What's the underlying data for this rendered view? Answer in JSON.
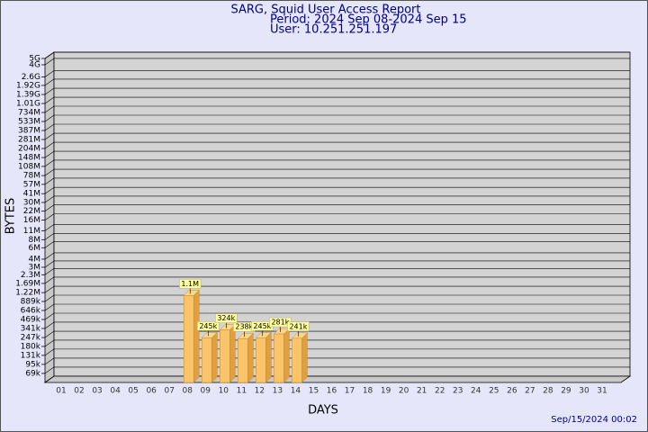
{
  "chart_data": {
    "type": "bar",
    "title": "SARG, Squid User Access Report",
    "subtitle": "Period: 2024 Sep 08-2024 Sep 15",
    "user": "User: 10.251.251.197",
    "x_label": "DAYS",
    "y_label": "BYTES",
    "footer": "Sep/15/2024 00:02",
    "categories": [
      "01",
      "02",
      "03",
      "04",
      "05",
      "06",
      "07",
      "08",
      "09",
      "10",
      "11",
      "12",
      "13",
      "14",
      "15",
      "16",
      "17",
      "18",
      "19",
      "20",
      "21",
      "22",
      "23",
      "24",
      "25",
      "26",
      "27",
      "28",
      "29",
      "30",
      "31"
    ],
    "values": [
      null,
      null,
      null,
      null,
      null,
      null,
      null,
      1100000,
      245000,
      324000,
      238000,
      245000,
      281000,
      241000,
      null,
      null,
      null,
      null,
      null,
      null,
      null,
      null,
      null,
      null,
      null,
      null,
      null,
      null,
      null,
      null,
      null
    ],
    "value_labels": [
      null,
      null,
      null,
      null,
      null,
      null,
      null,
      "1.1M",
      "245k",
      "324k",
      "238k",
      "245k",
      "281k",
      "241k",
      null,
      null,
      null,
      null,
      null,
      null,
      null,
      null,
      null,
      null,
      null,
      null,
      null,
      null,
      null,
      null,
      null
    ],
    "color": "#f9c46a",
    "log_scale": true,
    "grid": true,
    "ylim": [
      50000,
      5000000000
    ],
    "yticks": [
      {
        "value": 69000,
        "label": "69k"
      },
      {
        "value": 95000,
        "label": "95k"
      },
      {
        "value": 131000,
        "label": "131k"
      },
      {
        "value": 180000,
        "label": "180k"
      },
      {
        "value": 247000,
        "label": "247k"
      },
      {
        "value": 341000,
        "label": "341k"
      },
      {
        "value": 469000,
        "label": "469k"
      },
      {
        "value": 646000,
        "label": "646k"
      },
      {
        "value": 889000,
        "label": "889k"
      },
      {
        "value": 1220000,
        "label": "1.22M"
      },
      {
        "value": 1690000,
        "label": "1.69M"
      },
      {
        "value": 2300000,
        "label": "2.3M"
      },
      {
        "value": 3000000,
        "label": "3M"
      },
      {
        "value": 4000000,
        "label": "4M"
      },
      {
        "value": 6000000,
        "label": "6M"
      },
      {
        "value": 8000000,
        "label": "8M"
      },
      {
        "value": 11000000,
        "label": "11M"
      },
      {
        "value": 16000000,
        "label": "16M"
      },
      {
        "value": 22000000,
        "label": "22M"
      },
      {
        "value": 30000000,
        "label": "30M"
      },
      {
        "value": 41000000,
        "label": "41M"
      },
      {
        "value": 57000000,
        "label": "57M"
      },
      {
        "value": 78000000,
        "label": "78M"
      },
      {
        "value": 108000000,
        "label": "108M"
      },
      {
        "value": 148000000,
        "label": "148M"
      },
      {
        "value": 204000000,
        "label": "204M"
      },
      {
        "value": 281000000,
        "label": "281M"
      },
      {
        "value": 387000000,
        "label": "387M"
      },
      {
        "value": 533000000,
        "label": "533M"
      },
      {
        "value": 734000000,
        "label": "734M"
      },
      {
        "value": 1010000000,
        "label": "1.01G"
      },
      {
        "value": 1390000000,
        "label": "1.39G"
      },
      {
        "value": 1920000000,
        "label": "1.92G"
      },
      {
        "value": 2600000000,
        "label": "2.6G"
      },
      {
        "value": 4000000000,
        "label": "4G"
      },
      {
        "value": 5000000000,
        "label": "5G"
      }
    ]
  }
}
